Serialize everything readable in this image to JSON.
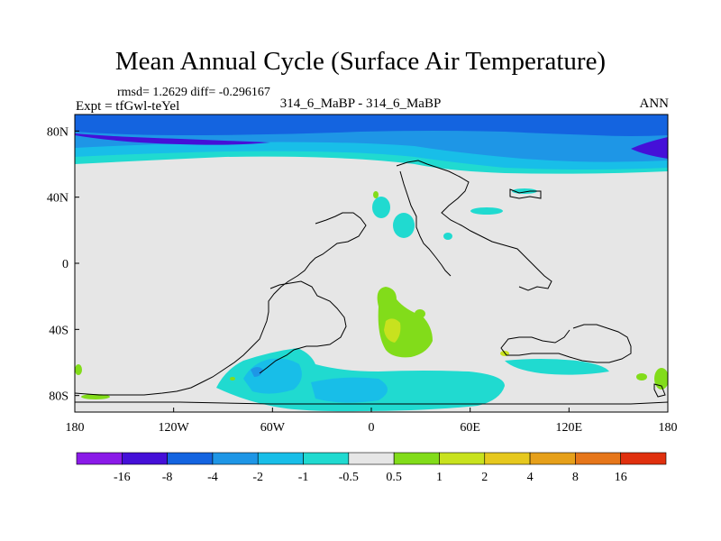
{
  "title": "Mean Annual Cycle (Surface Air Temperature)",
  "stats": "rmsd= 1.2629 diff= -0.296167",
  "expt": "Expt = tfGwl-teYel",
  "center_label": "314_6_MaBP - 314_6_MaBP",
  "season": "ANN",
  "chart_data": {
    "type": "heatmap",
    "title": "Mean Annual Cycle (Surface Air Temperature)",
    "x_ticks": [
      "180",
      "120W",
      "60W",
      "0",
      "60E",
      "120E",
      "180"
    ],
    "x_tick_values": [
      -180,
      -120,
      -60,
      0,
      60,
      120,
      180
    ],
    "y_ticks": [
      "80N",
      "40N",
      "0",
      "40S",
      "80S"
    ],
    "y_tick_values": [
      80,
      40,
      0,
      -40,
      -80
    ],
    "xlim": [
      -180,
      180
    ],
    "ylim": [
      -90,
      90
    ],
    "colorbar_labels": [
      "-16",
      "-8",
      "-4",
      "-2",
      "-1",
      "-0.5",
      "0.5",
      "1",
      "2",
      "4",
      "8",
      "16"
    ],
    "colorbar_colors": [
      "#8a1ae8",
      "#4510d8",
      "#1464e0",
      "#1e96e6",
      "#18bee8",
      "#20dad0",
      "#e6e6e6",
      "#82dc1a",
      "#c8e21e",
      "#e6c81e",
      "#e6a01a",
      "#e6761a",
      "#e0300e"
    ]
  }
}
